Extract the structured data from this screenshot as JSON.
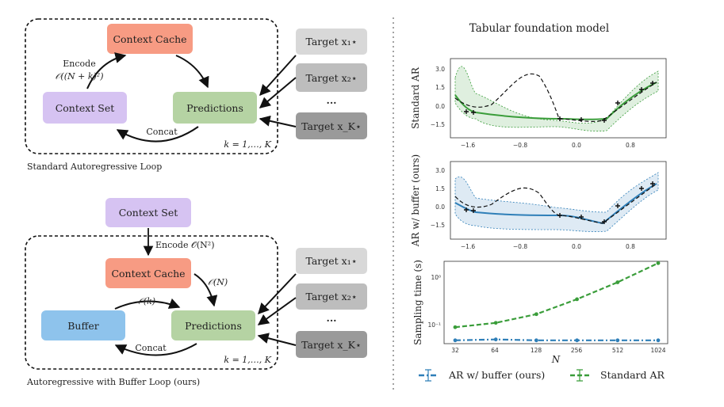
{
  "left": {
    "top_loop": {
      "caption": "Standard Autoregressive Loop",
      "context_cache": "Context Cache",
      "context_set": "Context Set",
      "predictions": "Predictions",
      "encode_label": "Encode",
      "encode_cost": "𝒪((N + k)²)",
      "concat": "Concat",
      "k_range": "k = 1,…, K",
      "targets": [
        "Target x₁⋆",
        "Target x₂⋆",
        "Target x_K⋆"
      ],
      "ellipsis": "···"
    },
    "bottom_loop": {
      "caption": "Autoregressive with Buffer Loop (ours)",
      "context_set": "Context Set",
      "encode_label": "Encode 𝒪(N²)",
      "context_cache": "Context Cache",
      "buffer": "Buffer",
      "predictions": "Predictions",
      "on_cost": "𝒪(N)",
      "ok_cost": "𝒪(k)",
      "concat": "Concat",
      "k_range": "k = 1,…, K",
      "targets": [
        "Target x₁⋆",
        "Target x₂⋆",
        "Target x_K⋆"
      ],
      "ellipsis": "···"
    },
    "colors": {
      "context_cache": "#f79b83",
      "context_set": "#d6c3f2",
      "predictions": "#b5d3a3",
      "buffer": "#8ec3ec",
      "target_light": "#d8d8d8",
      "target_mid": "#bdbdbd",
      "target_dark": "#9a9a9a"
    }
  },
  "right": {
    "title": "Tabular foundation model",
    "top_panel": {
      "ylabel": "Standard AR",
      "yticks": [
        "3.0",
        "1.5",
        "0.0",
        "−1.5"
      ],
      "xticks": [
        "−1.6",
        "−0.8",
        "0.0",
        "0.8"
      ],
      "color": "#3a9d3a"
    },
    "mid_panel": {
      "ylabel": "AR w/ buffer (ours)",
      "yticks": [
        "3.0",
        "1.5",
        "0.0",
        "−1.5"
      ],
      "xticks": [
        "−1.6",
        "−0.8",
        "0.0",
        "0.8"
      ],
      "color": "#2f7fb8"
    },
    "timing": {
      "ylabel": "Sampling time (s)",
      "xlabel": "N",
      "ytick_top": "10⁰",
      "ytick_bottom": "10⁻¹",
      "xticks": [
        "32",
        "64",
        "128",
        "256",
        "512",
        "1024"
      ]
    },
    "legend": {
      "buffer": "AR w/ buffer (ours)",
      "standard": "Standard AR"
    }
  },
  "chart_data": {
    "type": "line",
    "title": "",
    "xlabel": "N",
    "ylabel": "Sampling time (s)",
    "yscale": "log",
    "categories": [
      32,
      64,
      128,
      256,
      512,
      1024
    ],
    "series": [
      {
        "name": "AR w/ buffer (ours)",
        "values": [
          0.045,
          0.047,
          0.045,
          0.045,
          0.045,
          0.045
        ],
        "color": "#2f7fb8"
      },
      {
        "name": "Standard AR",
        "values": [
          0.085,
          0.105,
          0.16,
          0.33,
          0.75,
          1.9
        ],
        "color": "#3a9d3a"
      }
    ]
  }
}
